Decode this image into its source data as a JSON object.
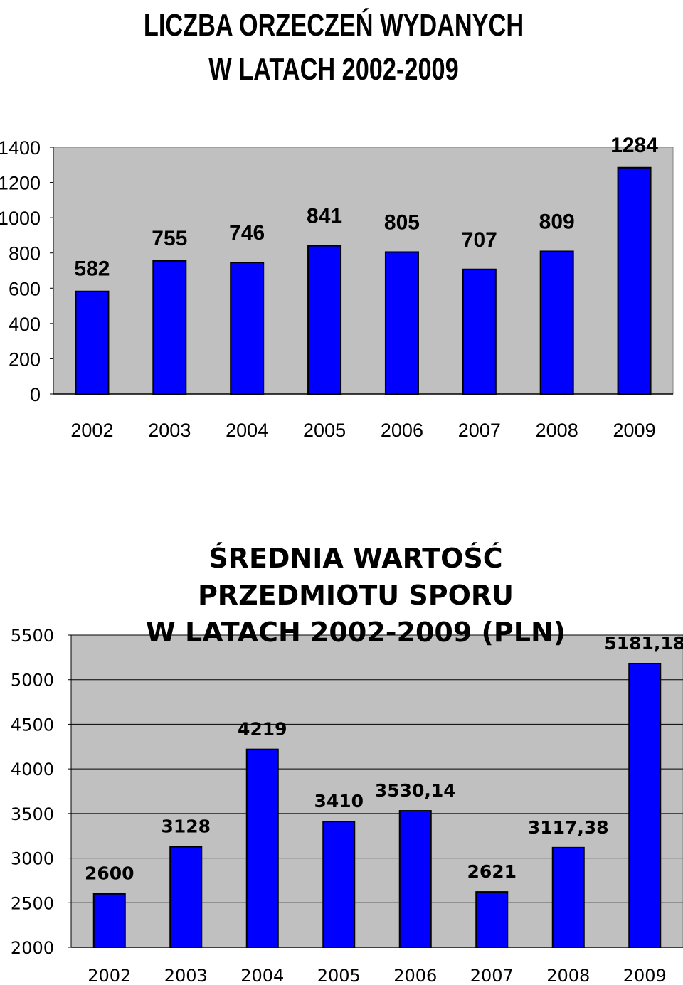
{
  "chart_data": [
    {
      "type": "bar",
      "title_lines": [
        "LICZBA ORZECZEŃ WYDANYCH",
        "W LATACH 2002-2009"
      ],
      "categories": [
        "2002",
        "2003",
        "2004",
        "2005",
        "2006",
        "2007",
        "2008",
        "2009"
      ],
      "values": [
        582,
        755,
        746,
        841,
        805,
        707,
        809,
        1284
      ],
      "value_labels": [
        "582",
        "755",
        "746",
        "841",
        "805",
        "707",
        "809",
        "1284"
      ],
      "yticks": [
        "0",
        "200",
        "400",
        "600",
        "800",
        "1000",
        "1200",
        "1400"
      ],
      "ylim": [
        0,
        1400
      ],
      "grid": false,
      "colors": {
        "bar": "#0000ff",
        "plot_bg": "#c0c0c0",
        "border": "#000000"
      }
    },
    {
      "type": "bar",
      "title_lines": [
        "ŚREDNIA WARTOŚĆ",
        "PRZEDMIOTU SPORU",
        "W LATACH 2002-2009 (PLN)"
      ],
      "categories": [
        "2002",
        "2003",
        "2004",
        "2005",
        "2006",
        "2007",
        "2008",
        "2009"
      ],
      "values": [
        2600,
        3128,
        4219,
        3410,
        3530.14,
        2621,
        3117.38,
        5181.18
      ],
      "value_labels": [
        "2600",
        "3128",
        "4219",
        "3410",
        "3530,14",
        "2621",
        "3117,38",
        "5181,18"
      ],
      "yticks": [
        "2000",
        "2500",
        "3000",
        "3500",
        "4000",
        "4500",
        "5000",
        "5500"
      ],
      "ylim": [
        2000,
        5500
      ],
      "grid": true,
      "colors": {
        "bar": "#0000ff",
        "plot_bg": "#c0c0c0",
        "border": "#000000",
        "grid": "#000000"
      }
    }
  ]
}
